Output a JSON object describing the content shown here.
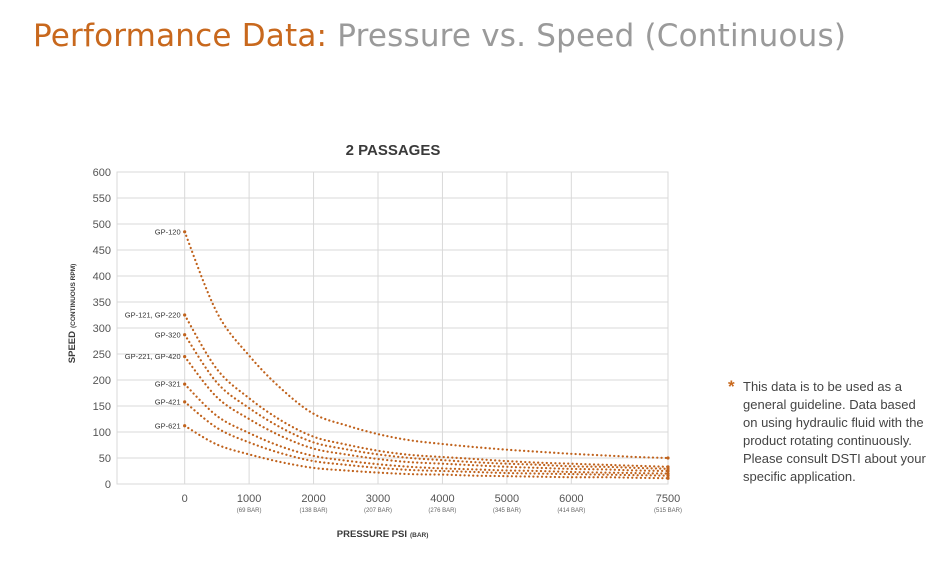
{
  "page_title": {
    "accent": "Performance Data:",
    "rest": "Pressure vs. Speed (Continuous)"
  },
  "colors": {
    "accent": "#c8681d",
    "curve": "#c0621c",
    "grid": "#d9d9d9",
    "title_gray": "#9a9a9a"
  },
  "chart_data": {
    "type": "line",
    "title": "2 PASSAGES",
    "xlabel": "PRESSURE PSI",
    "xlabel_unit": "(BAR)",
    "ylabel": "SPEED",
    "ylabel_unit": "(CONTINUOUS RPM)",
    "xlim": [
      -1050,
      7500
    ],
    "ylim": [
      0,
      600
    ],
    "grid": true,
    "line_style": "dotted",
    "x_ticks": [
      {
        "value": 0,
        "label": "0",
        "sub": ""
      },
      {
        "value": 1000,
        "label": "1000",
        "sub": "(69 BAR)"
      },
      {
        "value": 2000,
        "label": "2000",
        "sub": "(138 BAR)"
      },
      {
        "value": 3000,
        "label": "3000",
        "sub": "(207 BAR)"
      },
      {
        "value": 4000,
        "label": "4000",
        "sub": "(276 BAR)"
      },
      {
        "value": 5000,
        "label": "5000",
        "sub": "(345 BAR)"
      },
      {
        "value": 6000,
        "label": "6000",
        "sub": "(414 BAR)"
      },
      {
        "value": 7500,
        "label": "7500",
        "sub": "(515 BAR)"
      }
    ],
    "y_ticks": [
      "0",
      "50",
      "100",
      "150",
      "200",
      "250",
      "300",
      "350",
      "400",
      "450",
      "500",
      "550",
      "600"
    ],
    "x": [
      0,
      500,
      1000,
      1500,
      2000,
      2500,
      3000,
      3500,
      4000,
      4500,
      5000,
      5500,
      6000,
      6500,
      7000,
      7500
    ],
    "series": [
      {
        "name": "GP-120",
        "values": [
          485,
          330,
          247,
          183,
          135,
          113,
          96,
          84,
          77,
          71,
          66,
          62,
          58,
          55,
          52,
          50
        ]
      },
      {
        "name": "GP-121, GP-220",
        "values": [
          325,
          221,
          165,
          122,
          91,
          76,
          64,
          56,
          52,
          48,
          44,
          41,
          39,
          37,
          35,
          33
        ]
      },
      {
        "name": "GP-320",
        "values": [
          287,
          195,
          146,
          108,
          80,
          67,
          57,
          50,
          46,
          42,
          39,
          37,
          34,
          33,
          31,
          29
        ]
      },
      {
        "name": "GP-221, GP-420",
        "values": [
          245,
          167,
          125,
          92,
          68,
          57,
          48,
          42,
          39,
          36,
          33,
          31,
          29,
          28,
          26,
          25
        ]
      },
      {
        "name": "GP-321",
        "values": [
          192,
          131,
          98,
          72,
          54,
          45,
          38,
          33,
          30,
          28,
          26,
          25,
          23,
          22,
          21,
          20
        ]
      },
      {
        "name": "GP-421",
        "values": [
          158,
          108,
          80,
          59,
          44,
          37,
          31,
          27,
          25,
          23,
          21,
          20,
          19,
          18,
          17,
          16
        ]
      },
      {
        "name": "GP-621",
        "values": [
          112,
          76,
          57,
          42,
          31,
          26,
          22,
          19,
          18,
          16,
          15,
          14,
          13,
          13,
          12,
          11
        ]
      }
    ]
  },
  "note": {
    "star": "*",
    "text": "This data is to be used as a general guideline. Data based on using hydraulic fluid with the product rotating continuously. Please consult DSTI about your specific application."
  }
}
